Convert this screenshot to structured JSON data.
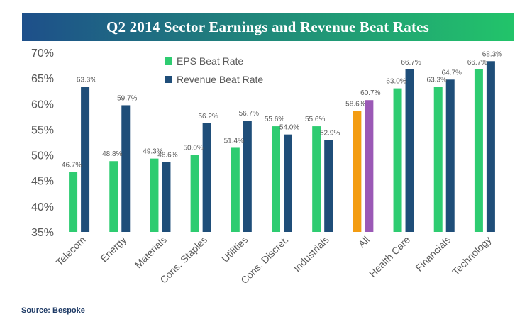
{
  "colors": {
    "banner_left": "#1e4f8a",
    "banner_right": "#22c46a",
    "eps": "#2ecc71",
    "revenue": "#1f4e79",
    "all_eps": "#f39c12",
    "all_revenue": "#9b59b6",
    "axis_text": "#595959",
    "label_text": "#595959",
    "source_text": "#1f3b66"
  },
  "source": "Source:  Bespoke",
  "chart_data": {
    "type": "bar",
    "title": "Q2 2014 Sector Earnings and Revenue Beat Rates",
    "xlabel": "",
    "ylabel": "",
    "ylim": [
      35,
      70
    ],
    "yticks": [
      35,
      40,
      45,
      50,
      55,
      60,
      65,
      70
    ],
    "ytick_labels": [
      "35%",
      "40%",
      "45%",
      "50%",
      "55%",
      "60%",
      "65%",
      "70%"
    ],
    "legend_position": "top-left",
    "grid": false,
    "categories": [
      "Telecom",
      "Energy",
      "Materials",
      "Cons. Staples",
      "Utilities",
      "Cons. Discret.",
      "Industrials",
      "All",
      "Health Care",
      "Financials",
      "Technology"
    ],
    "series": [
      {
        "name": "EPS Beat Rate",
        "values": [
          46.7,
          48.8,
          49.3,
          50.0,
          51.4,
          55.6,
          55.6,
          58.6,
          63.0,
          63.3,
          66.7
        ],
        "labels": [
          "46.7%",
          "48.8%",
          "49.3%",
          "50.0%",
          "51.4%",
          "55.6%",
          "55.6%",
          "58.6%",
          "63.0%",
          "63.3%",
          "66.7%"
        ]
      },
      {
        "name": "Revenue Beat Rate",
        "values": [
          63.3,
          59.7,
          48.6,
          56.2,
          56.7,
          54.0,
          52.9,
          60.7,
          66.7,
          64.7,
          68.3
        ],
        "labels": [
          "63.3%",
          "59.7%",
          "48.6%",
          "56.2%",
          "56.7%",
          "54.0%",
          "52.9%",
          "60.7%",
          "66.7%",
          "64.7%",
          "68.3%"
        ]
      }
    ],
    "highlight_category": "All"
  }
}
